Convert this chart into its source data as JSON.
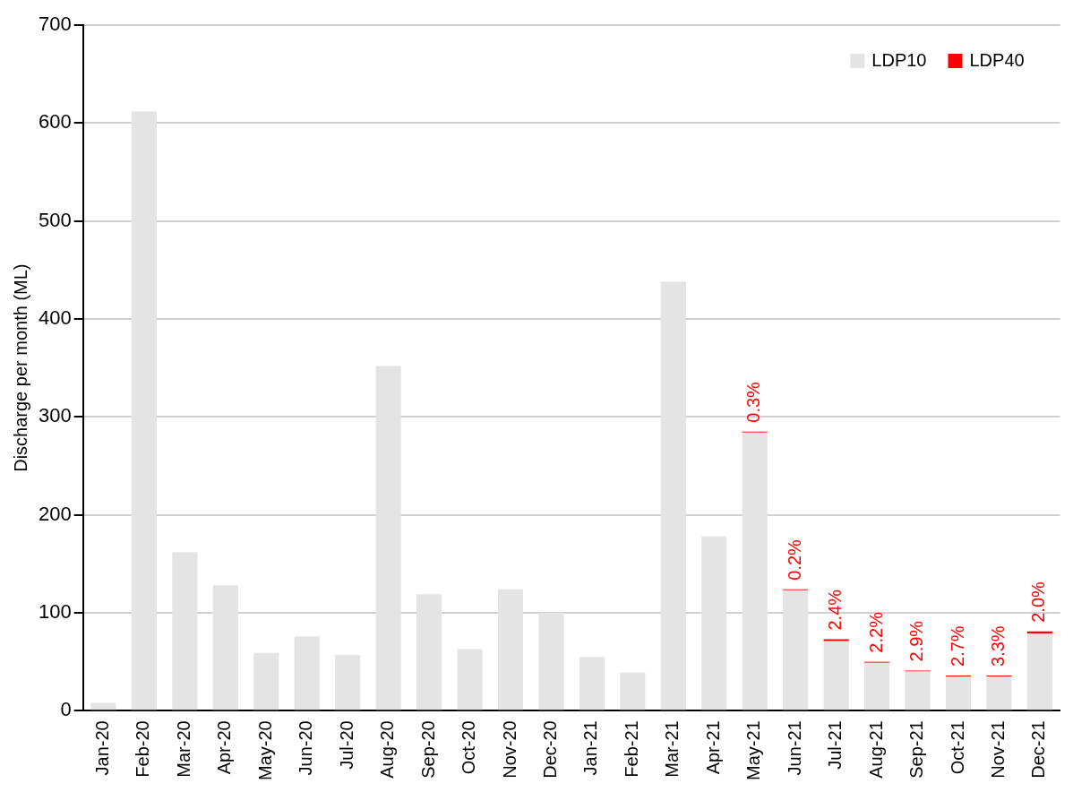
{
  "chart_data": {
    "type": "bar",
    "ylabel": "Discharge per month (ML)",
    "categories": [
      "Jan-20",
      "Feb-20",
      "Mar-20",
      "Apr-20",
      "May-20",
      "Jun-20",
      "Jul-20",
      "Aug-20",
      "Sep-20",
      "Oct-20",
      "Nov-20",
      "Dec-20",
      "Jan-21",
      "Feb-21",
      "Mar-21",
      "Apr-21",
      "May-21",
      "Jun-21",
      "Jul-21",
      "Aug-21",
      "Sep-21",
      "Oct-21",
      "Nov-21",
      "Dec-21"
    ],
    "series": [
      {
        "name": "LDP10",
        "color": "#e4e4e4",
        "values": [
          8,
          612,
          162,
          128,
          59,
          76,
          57,
          352,
          119,
          63,
          124,
          100,
          55,
          39,
          438,
          178,
          284,
          123,
          71,
          49,
          40,
          35,
          35,
          79
        ]
      },
      {
        "name": "LDP40",
        "color": "#ff0000",
        "values": [
          null,
          null,
          null,
          null,
          null,
          null,
          null,
          null,
          null,
          null,
          null,
          null,
          null,
          null,
          null,
          null,
          1,
          1,
          2,
          1,
          1,
          1,
          1,
          2
        ]
      }
    ],
    "annotations": [
      {
        "text": "0.3%",
        "x": "May-21",
        "y": 285
      },
      {
        "text": "0.2%",
        "x": "Jun-21",
        "y": 124
      },
      {
        "text": "2.4%",
        "x": "Jul-21",
        "y": 73
      },
      {
        "text": "2.2%",
        "x": "Aug-21",
        "y": 50
      },
      {
        "text": "2.9%",
        "x": "Sep-21",
        "y": 41
      },
      {
        "text": "2.7%",
        "x": "Oct-21",
        "y": 36
      },
      {
        "text": "3.3%",
        "x": "Nov-21",
        "y": 36
      },
      {
        "text": "2.0%",
        "x": "Dec-21",
        "y": 81
      }
    ],
    "stacked": true,
    "ylim": [
      0,
      700
    ],
    "yticks": [
      0,
      100,
      200,
      300,
      400,
      500,
      600,
      700
    ],
    "grid": "y",
    "legend": "top right"
  }
}
